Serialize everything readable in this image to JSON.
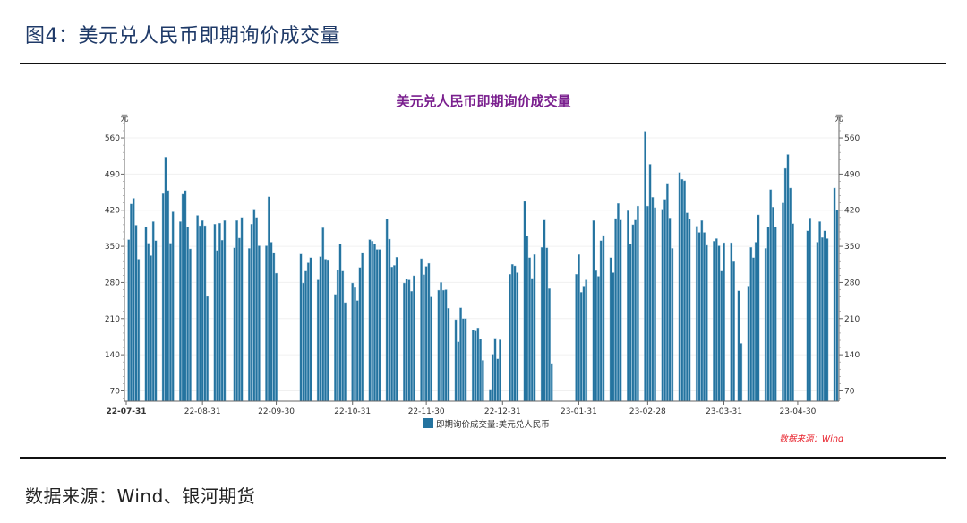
{
  "figure_title": "图4：美元兑人民币即期询价成交量",
  "source_text": "数据来源：Wind、银河期货",
  "colors": {
    "bar": "#24739f",
    "bar_edge": "#9cc4dc",
    "title": "#7a1f8e",
    "note": "#e8202a"
  },
  "chart_data": {
    "type": "bar",
    "title": "美元兑人民币即期询价成交量",
    "y_unit_left": "元",
    "y_unit_right": "元",
    "ylim": [
      50,
      600
    ],
    "y_ticks": [
      70,
      140,
      210,
      280,
      350,
      420,
      490,
      560
    ],
    "x_ticks": [
      "22-07-31",
      "22-08-31",
      "22-09-30",
      "22-10-31",
      "22-11-30",
      "22-12-31",
      "23-01-31",
      "23-02-28",
      "23-03-31",
      "23-04-30"
    ],
    "x_start": "2022-07-31",
    "legend": "即期询价成交量:美元兑人民币",
    "legend_position": "bottom",
    "note": "数据来源：Wind",
    "grid": true,
    "series_start_monday": "2022-08-01",
    "weekly_values_mon_to_fri": [
      [
        363,
        432,
        443,
        391,
        325
      ],
      [
        388,
        356,
        332,
        398,
        361
      ],
      [
        452,
        523,
        458,
        356,
        417
      ],
      [
        398,
        451,
        458,
        388,
        345
      ],
      [
        410,
        390,
        400,
        390,
        253
      ],
      [
        393,
        342,
        395,
        362,
        400
      ],
      [
        null,
        347,
        400,
        366,
        406
      ],
      [
        346,
        393,
        422,
        406,
        351
      ],
      [
        351,
        446,
        358,
        338,
        298
      ],
      [
        null,
        null,
        null,
        null,
        null
      ],
      [
        335,
        279,
        302,
        318,
        328
      ],
      [
        285,
        330,
        386,
        325,
        324
      ],
      [
        257,
        304,
        354,
        302,
        241
      ],
      [
        279,
        270,
        245,
        309,
        338
      ],
      [
        363,
        360,
        355,
        344,
        344
      ],
      [
        403,
        364,
        310,
        313,
        329
      ],
      [
        279,
        287,
        285,
        263,
        293
      ],
      [
        326,
        295,
        311,
        317,
        252
      ],
      [
        265,
        280,
        265,
        266,
        230
      ],
      [
        208,
        165,
        231,
        210,
        210
      ],
      [
        188,
        186,
        192,
        171,
        129
      ],
      [
        73,
        141,
        172,
        132,
        169
      ],
      [
        null,
        296,
        315,
        312,
        299
      ],
      [
        437,
        370,
        328,
        288,
        334
      ],
      [
        348,
        401,
        347,
        268,
        123
      ],
      [
        null,
        null,
        null,
        null,
        null
      ],
      [
        296,
        334,
        261,
        273,
        285
      ],
      [
        400,
        303,
        292,
        361,
        371
      ],
      [
        328,
        299,
        404,
        433,
        401
      ],
      [
        419,
        354,
        392,
        401,
        428
      ],
      [
        573,
        428,
        509,
        445,
        425
      ],
      [
        422,
        441,
        472,
        405,
        346
      ],
      [
        493,
        480,
        477,
        415,
        403
      ],
      [
        389,
        377,
        400,
        377,
        352
      ],
      [
        360,
        365,
        351,
        302,
        357
      ],
      [
        357,
        322,
        null,
        264,
        162
      ],
      [
        273,
        348,
        328,
        358,
        411
      ],
      [
        346,
        388,
        460,
        426,
        388
      ],
      [
        434,
        501,
        528,
        463,
        394
      ],
      [
        null,
        null,
        null,
        380,
        405
      ],
      [
        358,
        398,
        367,
        380,
        365
      ],
      [
        463,
        420,
        null,
        null,
        null
      ]
    ]
  }
}
